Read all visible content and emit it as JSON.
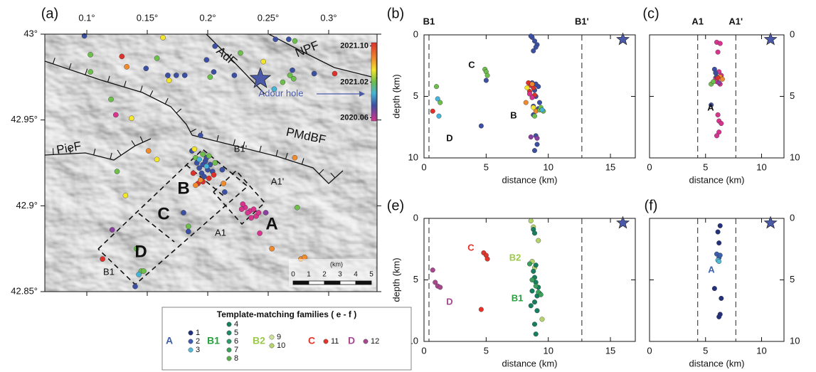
{
  "chart_data": [
    {
      "type": "map",
      "panel_label": "(a)",
      "xlim": [
        0.0653,
        0.34
      ],
      "ylim": [
        42.85,
        43.0
      ],
      "xticks": [
        {
          "value": 0.1,
          "label": "0.1°"
        },
        {
          "value": 0.15,
          "label": "0.15°"
        },
        {
          "value": 0.2,
          "label": "0.2°"
        },
        {
          "value": 0.25,
          "label": "0.25°"
        },
        {
          "value": 0.3,
          "label": "0.3°"
        }
      ],
      "yticks": [
        {
          "value": 43.0,
          "label": "43°"
        },
        {
          "value": 42.95,
          "label": "42.95°"
        },
        {
          "value": 42.9,
          "label": "42.9°"
        },
        {
          "value": 42.85,
          "label": "42.85°"
        }
      ],
      "annotations": [
        "AdF",
        "NPF",
        "PMdBF",
        "PieF",
        "Adour hole",
        "B",
        "C",
        "D",
        "A",
        "B1",
        "B1'",
        "A1",
        "A1'"
      ],
      "star": {
        "x": 0.2435,
        "y": 42.974
      },
      "colorbar": {
        "clim": [
          2020.4,
          2021.85
        ],
        "ticks": [
          {
            "value": 2021.79,
            "label": "2021.10"
          },
          {
            "value": 2021.12,
            "label": "2021.02"
          },
          {
            "value": 2020.46,
            "label": "2020.06"
          }
        ]
      },
      "scalebar": {
        "label": "(km)",
        "ticks": [
          0,
          1,
          2,
          3,
          4,
          5
        ]
      },
      "series": [
        {
          "color": "#3b4fa3",
          "x": [
            0.098,
            0.149,
            0.181,
            0.174,
            0.167,
            0.199,
            0.206,
            0.205,
            0.222,
            0.256,
            0.267,
            0.27,
            0.194,
            0.187,
            0.214,
            0.212,
            0.184,
            0.288,
            0.18,
            0.14,
            0.196,
            0.198,
            0.193,
            0.2,
            0.195,
            0.202,
            0.197,
            0.191,
            0.199,
            0.204
          ],
          "y": [
            42.999,
            42.98,
            42.976,
            42.976,
            42.976,
            42.985,
            42.993,
            42.978,
            42.976,
            42.997,
            42.997,
            42.979,
            42.941,
            42.932,
            42.908,
            42.921,
            42.885,
            42.977,
            42.896,
            42.853,
            42.924,
            42.926,
            42.922,
            42.921,
            42.919,
            42.924,
            42.917,
            42.925,
            42.928,
            42.92
          ]
        },
        {
          "color": "#e0302a",
          "x": [
            0.129,
            0.305,
            0.113,
            0.192,
            0.201,
            0.196,
            0.205,
            0.188
          ],
          "y": [
            42.987,
            42.977,
            42.869,
            42.913,
            42.916,
            42.914,
            42.918,
            42.919
          ]
        },
        {
          "color": "#f08a2c",
          "x": [
            0.133,
            0.151,
            0.272,
            0.253,
            0.277,
            0.28,
            0.213,
            0.194,
            0.19
          ],
          "y": [
            42.981,
            42.932,
            42.928,
            42.875,
            42.869,
            42.87,
            42.913,
            42.915,
            42.912
          ]
        },
        {
          "color": "#f5e52a",
          "x": [
            0.163,
            0.168,
            0.246,
            0.137,
            0.158,
            0.132,
            0.189
          ],
          "y": [
            42.998,
            42.973,
            42.984,
            42.951,
            42.927,
            42.906,
            42.933
          ]
        },
        {
          "color": "#6cbf4a",
          "x": [
            0.103,
            0.103,
            0.12,
            0.158,
            0.202,
            0.262,
            0.268,
            0.271,
            0.227,
            0.125,
            0.141,
            0.184,
            0.145,
            0.147,
            0.274,
            0.196,
            0.19,
            0.201,
            0.206,
            0.272
          ],
          "y": [
            42.988,
            42.978,
            42.962,
            42.986,
            42.975,
            42.972,
            42.976,
            42.974,
            42.989,
            42.92,
            42.875,
            42.888,
            42.862,
            42.862,
            42.899,
            42.93,
            42.928,
            42.929,
            42.925,
            42.996
          ]
        },
        {
          "color": "#45b4d6",
          "x": [
            0.255,
            0.143,
            0.193,
            0.199
          ],
          "y": [
            42.968,
            42.86,
            42.927,
            42.923
          ]
        },
        {
          "color": "#d8338f",
          "x": [
            0.124,
            0.243,
            0.231,
            0.235,
            0.238,
            0.228,
            0.233,
            0.24,
            0.236,
            0.229,
            0.242
          ],
          "y": [
            42.953,
            42.884,
            42.899,
            42.897,
            42.898,
            42.898,
            42.896,
            42.894,
            42.893,
            42.901,
            42.896
          ]
        },
        {
          "color": "#8b3fa0",
          "x": [
            0.248,
            0.121
          ],
          "y": [
            42.896,
            42.886
          ]
        }
      ]
    },
    {
      "type": "scatter",
      "panel_label": "(b)",
      "xlabel": "distance (km)",
      "ylabel": "depth (km)",
      "xlim": [
        0,
        17
      ],
      "ylim": [
        10,
        0
      ],
      "xticks": [
        0,
        5,
        10,
        15
      ],
      "yticks": [
        0,
        5,
        10
      ],
      "sections": [
        {
          "label": "B1",
          "x": 0.4
        },
        {
          "label": "B1'",
          "x": 12.7
        }
      ],
      "star": {
        "x": 16,
        "y": 0.2
      },
      "annotations": [
        "C",
        "B",
        "D"
      ],
      "series": [
        {
          "color": "#3b4fa3",
          "x": [
            8.7,
            8.9,
            9.1,
            8.8,
            9.0,
            8.6,
            9.2,
            8.9,
            9.0,
            9.3,
            8.8,
            4.6,
            9.0,
            8.9,
            9.1,
            5.0,
            8.7,
            9.2,
            8.8,
            9.0
          ],
          "y": [
            0.2,
            0.5,
            0.8,
            1.3,
            1.0,
            0.1,
            4.2,
            4.5,
            5.0,
            5.5,
            6.5,
            7.4,
            8.2,
            9.4,
            8.9,
            3.7,
            3.9,
            6.0,
            5.8,
            4.0
          ]
        },
        {
          "color": "#e0302a",
          "x": [
            0.7,
            8.4,
            8.6,
            8.8,
            8.5,
            8.9
          ],
          "y": [
            6.2,
            3.9,
            4.1,
            4.3,
            4.6,
            4.9
          ]
        },
        {
          "color": "#f08a2c",
          "x": [
            8.2,
            8.7,
            9.0
          ],
          "y": [
            5.5,
            4.0,
            6.2
          ]
        },
        {
          "color": "#f5e52a",
          "x": [
            8.3,
            8.8
          ],
          "y": [
            4.3,
            5.9
          ]
        },
        {
          "color": "#6cbf4a",
          "x": [
            1.0,
            1.3,
            4.9,
            5.0,
            5.1,
            9.3,
            9.6,
            9.4,
            8.9
          ],
          "y": [
            4.2,
            5.5,
            2.8,
            3.0,
            3.3,
            6.1,
            6.2,
            5.9,
            6.6
          ]
        },
        {
          "color": "#45b4d6",
          "x": [
            1.1,
            1.2,
            9.5
          ],
          "y": [
            5.2,
            6.6,
            6.1
          ]
        },
        {
          "color": "#d8338f",
          "x": [
            8.5,
            8.7
          ],
          "y": [
            4.8,
            5.1
          ]
        },
        {
          "color": "#8b3fa0",
          "x": [
            8.6,
            9.1
          ],
          "y": [
            8.3,
            8.4
          ]
        }
      ]
    },
    {
      "type": "scatter",
      "panel_label": "(c)",
      "xlabel": "distance (km)",
      "xlim": [
        0,
        12
      ],
      "ylim": [
        10,
        0
      ],
      "xticks": [
        0,
        5,
        10
      ],
      "yticks": [
        0,
        5,
        10
      ],
      "sections": [
        {
          "label": "A1",
          "x": 4.3
        },
        {
          "label": "A1'",
          "x": 7.7
        }
      ],
      "star": {
        "x": 10.8,
        "y": 0.2
      },
      "annotations": [
        "A"
      ],
      "series": [
        {
          "color": "#d8338f",
          "x": [
            6.0,
            6.1,
            6.3,
            5.9,
            6.2,
            6.4,
            6.0,
            6.3,
            6.1,
            6.2,
            6.4,
            6.2,
            6.0
          ],
          "y": [
            0.6,
            1.4,
            0.7,
            3.5,
            3.0,
            3.3,
            3.8,
            4.0,
            6.5,
            7.0,
            7.2,
            7.9,
            8.2
          ]
        },
        {
          "color": "#3b4fa3",
          "x": [
            5.8,
            5.9,
            5.5,
            6.0
          ],
          "y": [
            2.8,
            3.1,
            5.7,
            3.4
          ]
        },
        {
          "color": "#f08a2c",
          "x": [
            6.3,
            6.5
          ],
          "y": [
            3.4,
            3.6
          ]
        },
        {
          "color": "#6cbf4a",
          "x": [
            5.5,
            5.7
          ],
          "y": [
            4.0,
            3.8
          ]
        },
        {
          "color": "#e0302a",
          "x": [
            6.1
          ],
          "y": [
            3.5
          ]
        },
        {
          "color": "#8b3fa0",
          "x": [
            6.2
          ],
          "y": [
            3.9
          ]
        }
      ]
    },
    {
      "type": "scatter",
      "panel_label": "(e)",
      "xlabel": "distance (km)",
      "ylabel": "depth (km)",
      "xlim": [
        0,
        17
      ],
      "ylim": [
        10,
        0
      ],
      "xticks": [
        0,
        5,
        10,
        15
      ],
      "yticks": [
        0,
        5,
        10
      ],
      "sections": [
        {
          "x": 0.4
        },
        {
          "x": 12.7
        }
      ],
      "star": {
        "x": 16,
        "y": 0.2
      },
      "annotations": [
        "C",
        "B2",
        "B1",
        "D"
      ],
      "series": [
        {
          "color": "#e5342a",
          "x": [
            4.8,
            5.0,
            5.1,
            4.6
          ],
          "y": [
            2.8,
            3.0,
            3.3,
            7.4
          ]
        },
        {
          "color": "#a9478f",
          "x": [
            0.7,
            0.9,
            1.1,
            1.3
          ],
          "y": [
            4.2,
            5.2,
            5.5,
            5.6
          ]
        },
        {
          "color": "#b5d56c",
          "x": [
            8.6,
            8.8,
            9.2,
            8.7,
            8.9,
            9.5
          ],
          "y": [
            0.2,
            0.7,
            1.8,
            3.5,
            4.0,
            8.2
          ]
        },
        {
          "color": "#138060",
          "x": [
            8.8,
            8.9,
            9.0,
            8.8,
            8.9,
            9.0,
            9.2,
            8.7,
            9.1,
            8.9,
            9.3,
            8.6,
            8.9,
            9.0,
            9.1
          ],
          "y": [
            0.9,
            1.2,
            3.8,
            4.3,
            4.8,
            5.2,
            5.6,
            5.9,
            6.3,
            6.8,
            6.1,
            7.1,
            8.6,
            9.4,
            7.5
          ]
        },
        {
          "color": "#3aa15a",
          "x": [
            8.5,
            8.7,
            9.0,
            9.2,
            9.4
          ],
          "y": [
            3.7,
            5.0,
            5.5,
            6.0,
            6.2
          ]
        }
      ]
    },
    {
      "type": "scatter",
      "panel_label": "(f)",
      "xlabel": "distance (km)",
      "xlim": [
        0,
        12
      ],
      "ylim": [
        10,
        0
      ],
      "xticks": [
        0,
        5,
        10
      ],
      "yticks": [
        0,
        5,
        10
      ],
      "sections": [
        {
          "x": 4.3
        },
        {
          "x": 7.7
        }
      ],
      "star": {
        "x": 10.8,
        "y": 0.2
      },
      "annotations": [
        "A"
      ],
      "series": [
        {
          "color": "#23307a",
          "x": [
            6.1,
            6.3,
            6.2,
            6.4,
            6.3,
            6.2,
            5.8
          ],
          "y": [
            1.1,
            0.6,
            2.0,
            6.5,
            7.8,
            8.0,
            5.7
          ]
        },
        {
          "color": "#3e5fae",
          "x": [
            6.0,
            6.2,
            6.3
          ],
          "y": [
            2.9,
            3.2,
            3.0
          ]
        },
        {
          "color": "#57b9d8",
          "x": [
            6.1,
            6.2
          ],
          "y": [
            3.4,
            3.5
          ]
        }
      ]
    }
  ],
  "families_legend": {
    "title": "Template-matching families ( e - f )",
    "groups": [
      {
        "name": "A",
        "color": "#3e5fae",
        "items": [
          {
            "id": 1,
            "color": "#23307a"
          },
          {
            "id": 2,
            "color": "#3e5fae"
          },
          {
            "id": 3,
            "color": "#57b9d8"
          }
        ]
      },
      {
        "name": "B1",
        "color": "#29a040",
        "items": [
          {
            "id": 4,
            "color": "#138060"
          },
          {
            "id": 5,
            "color": "#1f8a66"
          },
          {
            "id": 6,
            "color": "#2f9a6a"
          },
          {
            "id": 7,
            "color": "#3aa15a"
          },
          {
            "id": 8,
            "color": "#5ab04a"
          }
        ]
      },
      {
        "name": "B2",
        "color": "#9cc94a",
        "items": [
          {
            "id": 9,
            "color": "#cde39a"
          },
          {
            "id": 10,
            "color": "#b5d56c"
          }
        ]
      },
      {
        "name": "C",
        "color": "#e5342a",
        "items": [
          {
            "id": 11,
            "color": "#e5342a"
          }
        ]
      },
      {
        "name": "D",
        "color": "#a9478f",
        "items": [
          {
            "id": 12,
            "color": "#a9478f"
          }
        ]
      }
    ]
  }
}
